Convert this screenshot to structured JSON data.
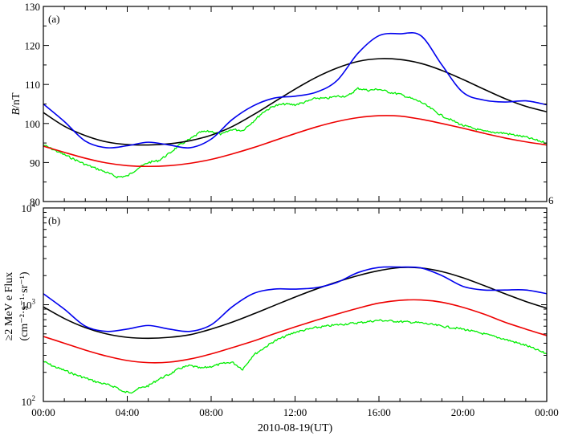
{
  "figure": {
    "xlabel": "2010-08-19(UT)",
    "x_ticks": [
      "00:00",
      "04:00",
      "08:00",
      "12:00",
      "16:00",
      "20:00",
      "00:00"
    ],
    "x_tick_hours": [
      0,
      4,
      8,
      12,
      16,
      20,
      24
    ],
    "xlim": [
      0,
      24
    ],
    "series_colors": {
      "observed": "#00ee00",
      "model_blue": "#0000ee",
      "model_black": "#000000",
      "model_red": "#ee0000"
    }
  },
  "chart_data": [
    {
      "type": "line",
      "panel_label": "(a)",
      "ylabel_italic": "B",
      "ylabel_rest": "/nT",
      "yscale": "linear",
      "ylim": [
        80,
        130
      ],
      "y_ticks": [
        80,
        90,
        100,
        110,
        120,
        130
      ],
      "y_tick_labels": [
        "80",
        "90",
        "100",
        "110",
        "120",
        "130"
      ],
      "stray_label": "6",
      "series": [
        {
          "name": "model_blue",
          "x": [
            0,
            1,
            2,
            3,
            4,
            5,
            6,
            7,
            8,
            9,
            10,
            11,
            12,
            13,
            14,
            15,
            16,
            17,
            18,
            19,
            20,
            21,
            22,
            23,
            24
          ],
          "values": [
            105,
            100.5,
            95.5,
            93.8,
            94.3,
            95.2,
            94.5,
            93.8,
            96,
            101,
            104.5,
            106.5,
            107,
            108,
            111,
            118,
            122.5,
            123,
            122.5,
            115,
            108,
            106,
            105.5,
            105.8,
            104.8
          ]
        },
        {
          "name": "model_black",
          "x": [
            0,
            1,
            2,
            3,
            4,
            5,
            6,
            7,
            8,
            9,
            10,
            11,
            12,
            13,
            14,
            15,
            16,
            17,
            18,
            19,
            20,
            21,
            22,
            23,
            24
          ],
          "values": [
            102.8,
            99.3,
            96.9,
            95.3,
            94.6,
            94.5,
            94.8,
            95.6,
            97,
            99.2,
            102.2,
            105.5,
            108.8,
            111.8,
            114.2,
            115.9,
            116.6,
            116.4,
            115.4,
            113.6,
            111.3,
            108.8,
            106.4,
            104.4,
            103
          ]
        },
        {
          "name": "model_red",
          "x": [
            0,
            1,
            2,
            3,
            4,
            5,
            6,
            7,
            8,
            9,
            10,
            11,
            12,
            13,
            14,
            15,
            16,
            17,
            18,
            19,
            20,
            21,
            22,
            23,
            24
          ],
          "values": [
            94.2,
            92.6,
            91.1,
            89.9,
            89.2,
            89,
            89.2,
            89.8,
            90.8,
            92.2,
            93.8,
            95.6,
            97.4,
            99.1,
            100.5,
            101.5,
            102,
            101.9,
            101.1,
            100,
            98.8,
            97.5,
            96.3,
            95.3,
            94.5
          ]
        },
        {
          "name": "observed",
          "x": [
            0,
            1,
            2,
            3,
            3.5,
            4,
            4.5,
            5,
            5.5,
            6,
            6.5,
            7,
            7.5,
            8,
            8.5,
            9,
            9.5,
            10,
            10.5,
            11,
            11.5,
            12,
            12.5,
            13,
            13.5,
            14,
            14.5,
            15,
            15.5,
            16,
            16.5,
            17,
            18,
            19,
            20,
            21,
            22,
            23,
            24
          ],
          "values": [
            94.5,
            92,
            89.5,
            87.5,
            86.3,
            86.5,
            88.5,
            90,
            90.5,
            92.3,
            94.5,
            96,
            97.8,
            98,
            97.2,
            98.5,
            98.2,
            100.5,
            103,
            104.5,
            105,
            104.8,
            105.5,
            106.5,
            106.4,
            107,
            107,
            109,
            108.5,
            108.8,
            108,
            107.5,
            105.5,
            102,
            99.5,
            98,
            97.5,
            96.5,
            95
          ]
        }
      ]
    },
    {
      "type": "line",
      "panel_label": "(b)",
      "ylabel_line1": "≥2 MeV e Flux",
      "ylabel_line2": "(cm⁻²·s⁻¹·sr⁻¹)",
      "yscale": "log",
      "ylim": [
        100,
        10000
      ],
      "y_tick_bases": [
        "10",
        "10",
        "10"
      ],
      "y_tick_exponents": [
        "2",
        "3",
        "4"
      ],
      "y_tick_values": [
        100,
        1000,
        10000
      ],
      "series": [
        {
          "name": "model_blue",
          "x": [
            0,
            1,
            2,
            3,
            4,
            5,
            6,
            7,
            8,
            9,
            10,
            11,
            12,
            13,
            14,
            15,
            16,
            17,
            18,
            19,
            20,
            21,
            22,
            23,
            24
          ],
          "values": [
            1300,
            900,
            600,
            530,
            560,
            610,
            560,
            530,
            620,
            950,
            1300,
            1450,
            1450,
            1500,
            1700,
            2150,
            2430,
            2450,
            2400,
            2000,
            1550,
            1420,
            1420,
            1420,
            1300
          ]
        },
        {
          "name": "model_black",
          "x": [
            0,
            1,
            2,
            3,
            4,
            5,
            6,
            7,
            8,
            9,
            10,
            11,
            12,
            13,
            14,
            15,
            16,
            17,
            18,
            19,
            20,
            21,
            22,
            23,
            24
          ],
          "values": [
            950,
            720,
            580,
            500,
            460,
            450,
            460,
            490,
            560,
            660,
            800,
            980,
            1200,
            1450,
            1720,
            2000,
            2250,
            2420,
            2400,
            2200,
            1900,
            1580,
            1300,
            1080,
            920
          ]
        },
        {
          "name": "model_red",
          "x": [
            0,
            1,
            2,
            3,
            4,
            5,
            6,
            7,
            8,
            9,
            10,
            11,
            12,
            13,
            14,
            15,
            16,
            17,
            18,
            19,
            20,
            21,
            22,
            23,
            24
          ],
          "values": [
            470,
            400,
            340,
            295,
            265,
            252,
            255,
            275,
            310,
            360,
            420,
            500,
            590,
            690,
            800,
            920,
            1040,
            1110,
            1120,
            1060,
            940,
            800,
            660,
            560,
            480
          ]
        },
        {
          "name": "observed",
          "x": [
            0,
            0.5,
            1,
            1.5,
            2,
            2.5,
            3,
            3.5,
            3.8,
            4.2,
            4.5,
            5,
            5.5,
            6,
            6.5,
            7,
            7.5,
            8,
            8.5,
            9,
            9.5,
            10,
            11,
            12,
            13,
            14,
            15,
            16,
            17,
            18,
            19,
            20,
            21,
            22,
            23,
            24
          ],
          "values": [
            260,
            230,
            210,
            190,
            175,
            160,
            150,
            140,
            125,
            125,
            135,
            145,
            170,
            190,
            220,
            235,
            220,
            230,
            245,
            255,
            215,
            300,
            420,
            520,
            580,
            620,
            650,
            690,
            670,
            650,
            600,
            560,
            500,
            440,
            380,
            310
          ]
        }
      ]
    }
  ]
}
